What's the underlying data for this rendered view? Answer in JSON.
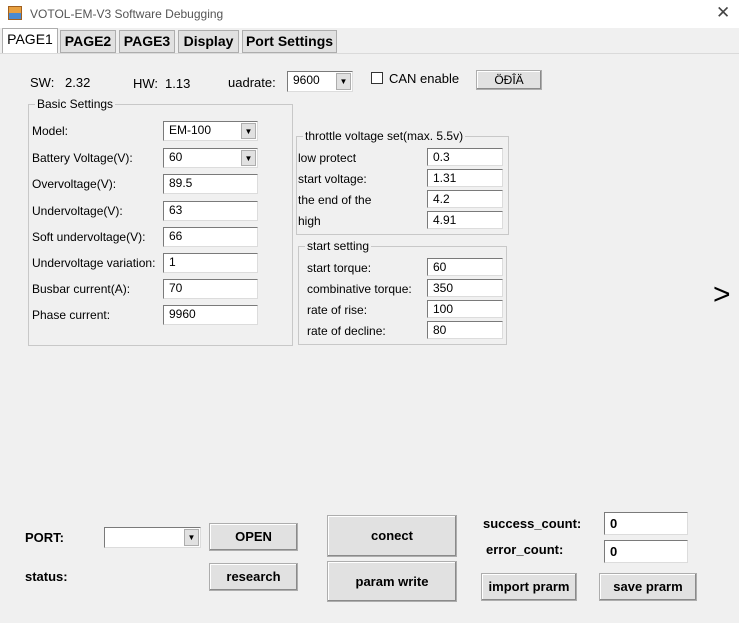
{
  "window": {
    "title": "VOTOL-EM-V3 Software Debugging",
    "close_icon": "close-icon"
  },
  "tabs": [
    {
      "label": "PAGE1",
      "selected": true
    },
    {
      "label": "PAGE2"
    },
    {
      "label": "PAGE3"
    },
    {
      "label": "Display"
    },
    {
      "label": "Port Settings"
    }
  ],
  "header": {
    "sw_label": "SW:",
    "sw_value": "2.32",
    "hw_label": "HW:",
    "hw_value": "1.13",
    "baud_label": "uadrate:",
    "baud_value": "9600",
    "can_label": "CAN enable",
    "can_checked": false,
    "lang_button": "ÖÐÎÄ"
  },
  "basic": {
    "title": "Basic Settings",
    "rows": [
      {
        "label": "Model:",
        "value": "EM-100",
        "combo": true
      },
      {
        "label": "Battery Voltage(V):",
        "value": "60",
        "combo": true
      },
      {
        "label": "Overvoltage(V):",
        "value": "89.5"
      },
      {
        "label": "Undervoltage(V):",
        "value": "63"
      },
      {
        "label": "Soft undervoltage(V):",
        "value": "66"
      },
      {
        "label": "Undervoltage variation:",
        "value": "1"
      },
      {
        "label": "Busbar current(A):",
        "value": "70"
      },
      {
        "label": "Phase current:",
        "value": "9960"
      }
    ]
  },
  "throttle": {
    "title": "throttle voltage set(max. 5.5v)",
    "rows": [
      {
        "label": "low protect",
        "value": "0.3"
      },
      {
        "label": "start voltage:",
        "value": "1.31"
      },
      {
        "label": "the end of the",
        "value": "4.2"
      },
      {
        "label": "high",
        "value": "4.91"
      }
    ]
  },
  "start": {
    "title": "start setting",
    "rows": [
      {
        "label": "start torque:",
        "value": "60"
      },
      {
        "label": "combinative torque:",
        "value": "350"
      },
      {
        "label": "rate of rise:",
        "value": "100"
      },
      {
        "label": "rate of decline:",
        "value": "80"
      }
    ]
  },
  "next_arrow": ">",
  "bottom": {
    "port_label": "PORT:",
    "port_value": "",
    "open": "OPEN",
    "status_label": "status:",
    "research": "research",
    "connect": "conect",
    "param_write": "param write",
    "success_label": "success_count:",
    "success_value": "0",
    "error_label": "error_count:",
    "error_value": "0",
    "import": "import prarm",
    "save": "save prarm"
  }
}
